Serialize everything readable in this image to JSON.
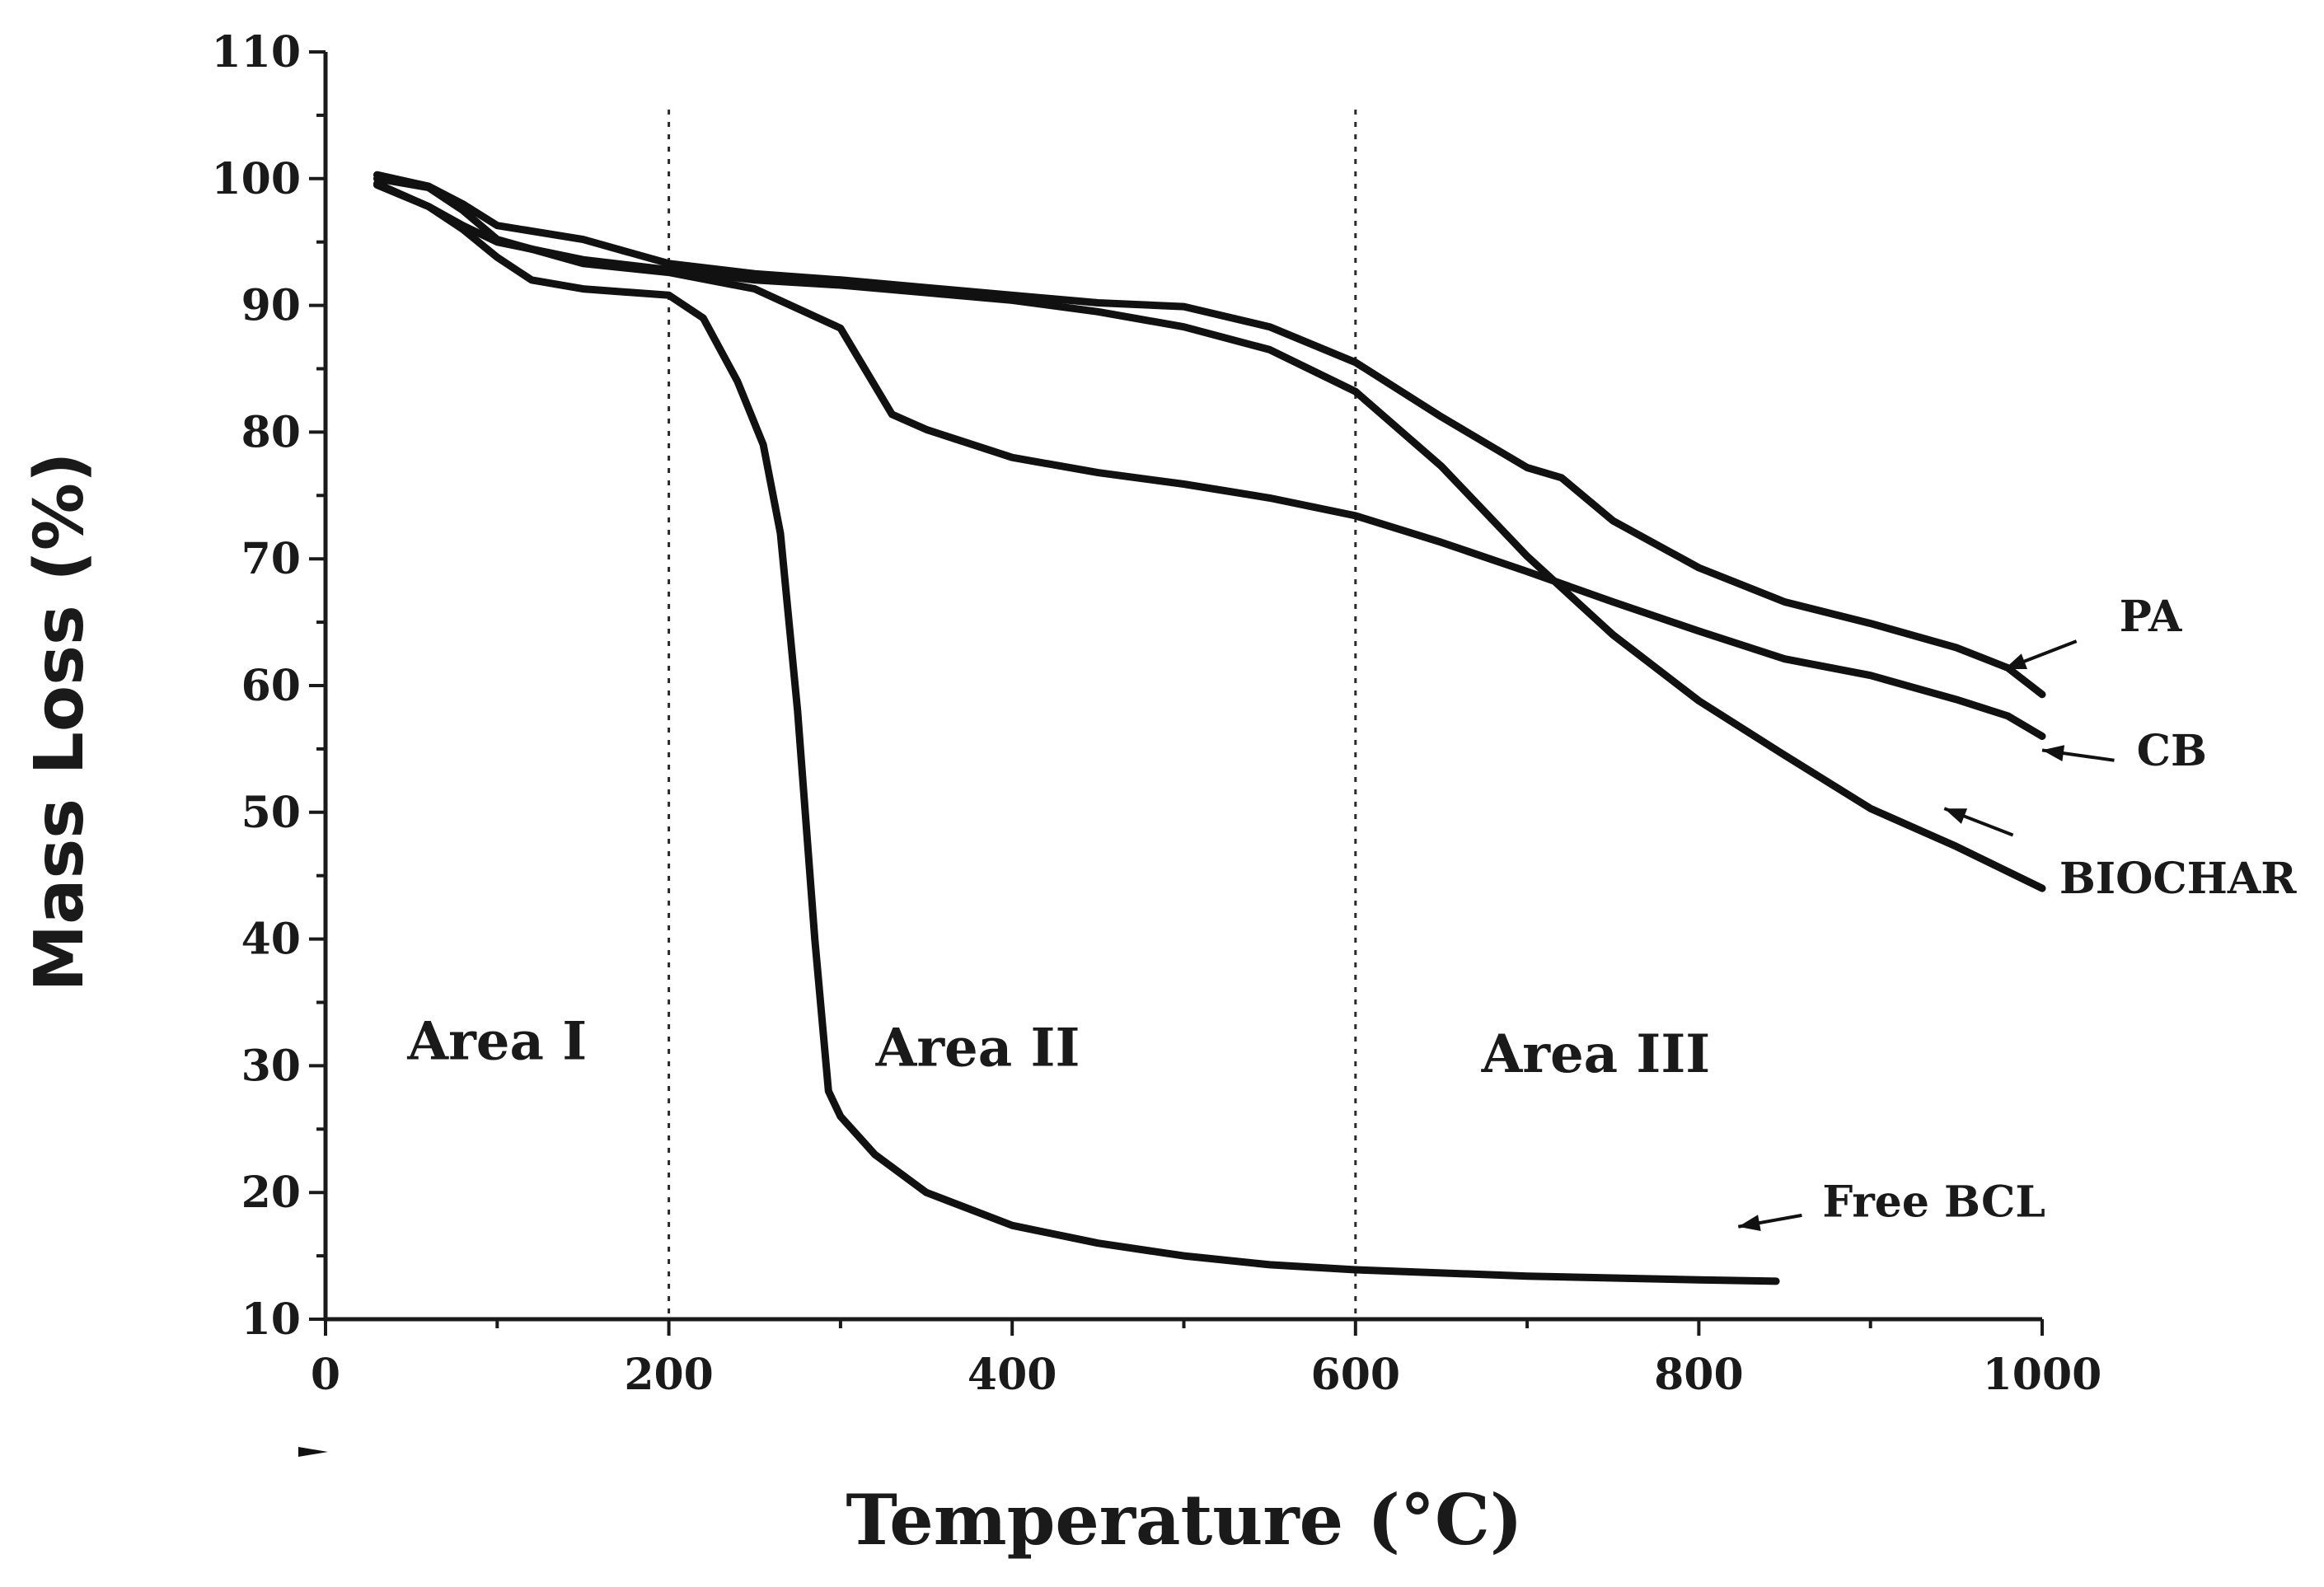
{
  "chart_data": {
    "type": "line",
    "title": "",
    "xlabel": "Temperature (°C)",
    "ylabel": "Mass Loss (%)",
    "xlim": [
      0,
      1000
    ],
    "ylim": [
      10,
      110
    ],
    "x_ticks": [
      0,
      200,
      400,
      600,
      800,
      1000
    ],
    "x_tick_labels": [
      "0",
      "200",
      "400",
      "600",
      "800",
      "1000"
    ],
    "y_ticks": [
      10,
      20,
      30,
      40,
      50,
      60,
      70,
      80,
      90,
      100,
      110
    ],
    "y_tick_labels": [
      "10",
      "20",
      "30",
      "40",
      "50",
      "60",
      "70",
      "80",
      "90",
      "100",
      "110"
    ],
    "grid": false,
    "reference_lines": [
      {
        "axis": "x",
        "value": 200,
        "style": "dotted"
      },
      {
        "axis": "x",
        "value": 600,
        "style": "dotted"
      }
    ],
    "areas": [
      {
        "label": "Area I",
        "x": 100,
        "y": 30.5
      },
      {
        "label": "Area II",
        "x": 380,
        "y": 30
      },
      {
        "label": "Area III",
        "x": 740,
        "y": 29.5
      }
    ],
    "series": [
      {
        "name": "PA",
        "label_x": 1045,
        "label_y": 64.3,
        "pointer_from": [
          1020,
          63.5
        ],
        "pointer_to": [
          978,
          61.3
        ],
        "x": [
          30,
          60,
          80,
          100,
          150,
          200,
          250,
          300,
          350,
          400,
          450,
          500,
          550,
          600,
          650,
          700,
          720,
          750,
          800,
          850,
          900,
          950,
          980,
          1000
        ],
        "y": [
          100.3,
          99.4,
          98.0,
          96.3,
          95.2,
          93.3,
          92.5,
          92.0,
          91.4,
          90.8,
          90.2,
          89.9,
          88.3,
          85.5,
          81.2,
          77.2,
          76.4,
          73.0,
          69.3,
          66.6,
          64.9,
          63.0,
          61.4,
          59.3
        ]
      },
      {
        "name": "CB",
        "label_x": 1055,
        "label_y": 53.7,
        "pointer_from": [
          1042,
          54.1
        ],
        "pointer_to": [
          1000,
          54.9
        ],
        "x": [
          30,
          60,
          80,
          100,
          150,
          200,
          250,
          300,
          330,
          350,
          400,
          450,
          500,
          550,
          600,
          650,
          700,
          750,
          800,
          850,
          900,
          950,
          980,
          1000
        ],
        "y": [
          100.0,
          99.3,
          97.5,
          95.2,
          93.3,
          92.6,
          91.3,
          88.2,
          81.4,
          80.2,
          78.0,
          76.8,
          75.9,
          74.8,
          73.4,
          71.3,
          69.0,
          66.6,
          64.3,
          62.1,
          60.8,
          58.9,
          57.6,
          56.0
        ]
      },
      {
        "name": "BIOCHAR",
        "label_x": 1010,
        "label_y": 43.6,
        "pointer_from": [
          983,
          48.2
        ],
        "pointer_to": [
          943,
          50.3
        ],
        "x": [
          30,
          60,
          80,
          100,
          150,
          200,
          250,
          300,
          350,
          400,
          450,
          500,
          550,
          600,
          650,
          700,
          750,
          800,
          850,
          900,
          950,
          1000
        ],
        "y": [
          99.6,
          97.8,
          96.3,
          95.0,
          93.6,
          92.8,
          92.0,
          91.6,
          91.0,
          90.4,
          89.5,
          88.3,
          86.5,
          83.2,
          77.3,
          70.2,
          64.0,
          58.8,
          54.5,
          50.3,
          47.3,
          44.0
        ]
      },
      {
        "name": "Free BCL",
        "label_x": 872,
        "label_y": 18.1,
        "pointer_from": [
          860,
          18.2
        ],
        "pointer_to": [
          823,
          17.3
        ],
        "x": [
          30,
          60,
          80,
          100,
          120,
          150,
          200,
          220,
          240,
          255,
          265,
          275,
          285,
          293,
          300,
          320,
          350,
          400,
          450,
          500,
          550,
          600,
          700,
          800,
          845
        ],
        "y": [
          99.5,
          97.8,
          96.0,
          93.8,
          92.0,
          91.3,
          90.8,
          89.0,
          84.0,
          79.0,
          72.0,
          58.0,
          40.0,
          28.0,
          26.0,
          23.0,
          20.0,
          17.4,
          16.0,
          15.0,
          14.3,
          13.9,
          13.4,
          13.1,
          13.0
        ]
      }
    ]
  }
}
